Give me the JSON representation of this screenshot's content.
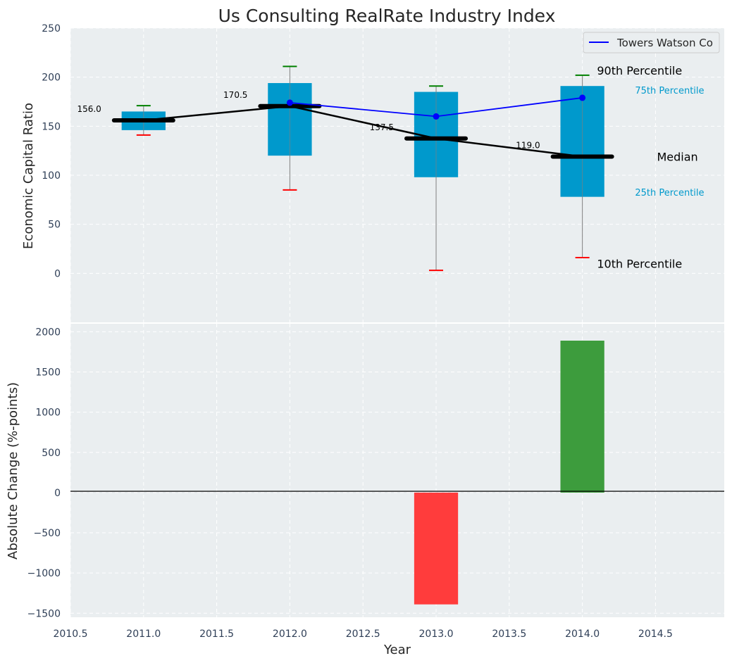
{
  "chart_data": [
    {
      "type": "box",
      "title": "Us Consulting RealRate Industry Index",
      "xlabel": "",
      "ylabel": "Economic Capital Ratio",
      "ylim": [
        -50,
        250
      ],
      "yticks": [
        0,
        50,
        100,
        150,
        200,
        250
      ],
      "grid": true,
      "legend": "top-right",
      "boxes": [
        {
          "x": 2011.0,
          "p10": 141,
          "p25": 146,
          "p75": 165,
          "p90": 171,
          "median": 156.0,
          "median_label": "156.0"
        },
        {
          "x": 2012.0,
          "p10": 85,
          "p25": 120,
          "p75": 194,
          "p90": 211,
          "median": 170.5,
          "median_label": "170.5"
        },
        {
          "x": 2013.0,
          "p10": 3,
          "p25": 98,
          "p75": 185,
          "p90": 191,
          "median": 137.5,
          "median_label": "137.5"
        },
        {
          "x": 2014.0,
          "p10": 16,
          "p25": 78,
          "p75": 191,
          "p90": 202,
          "median": 119.0,
          "median_label": "119.0"
        }
      ],
      "series": [
        {
          "name": "Towers Watson Co",
          "x": [
            2012.0,
            2013.0,
            2014.0
          ],
          "values": [
            174,
            160,
            179
          ],
          "color": "#0000ff"
        }
      ],
      "annotations": [
        {
          "text": "90th Percentile",
          "x": 2014.1,
          "y": 207
        },
        {
          "text": "75th Percentile",
          "x": 2014.36,
          "y": 186
        },
        {
          "text": "Median",
          "x": 2014.51,
          "y": 119
        },
        {
          "text": "25th Percentile",
          "x": 2014.36,
          "y": 82
        },
        {
          "text": "10th Percentile",
          "x": 2014.1,
          "y": 10
        }
      ],
      "colors": {
        "box": "#0099cc",
        "median_line": "#000000",
        "whisker_top": "#008000",
        "whisker_bottom": "#ff0000",
        "whisker": "#808080",
        "background": "#eaeef0"
      }
    },
    {
      "type": "bar",
      "xlabel": "Year",
      "ylabel": "Absolute Change (%-points)",
      "ylim": [
        -1550,
        2100
      ],
      "yticks": [
        -1500,
        -1000,
        -500,
        0,
        500,
        1000,
        1500,
        2000
      ],
      "xlim": [
        2010.5,
        2014.97
      ],
      "xticks": [
        "2010.5",
        "2011.0",
        "2011.5",
        "2012.0",
        "2012.5",
        "2013.0",
        "2013.5",
        "2014.0",
        "2014.5"
      ],
      "grid": true,
      "x": [
        2013.0,
        2014.0
      ],
      "values": [
        -1390,
        1890
      ],
      "bar_colors": [
        "#ff3c3c",
        "#3d9c3d"
      ]
    }
  ]
}
